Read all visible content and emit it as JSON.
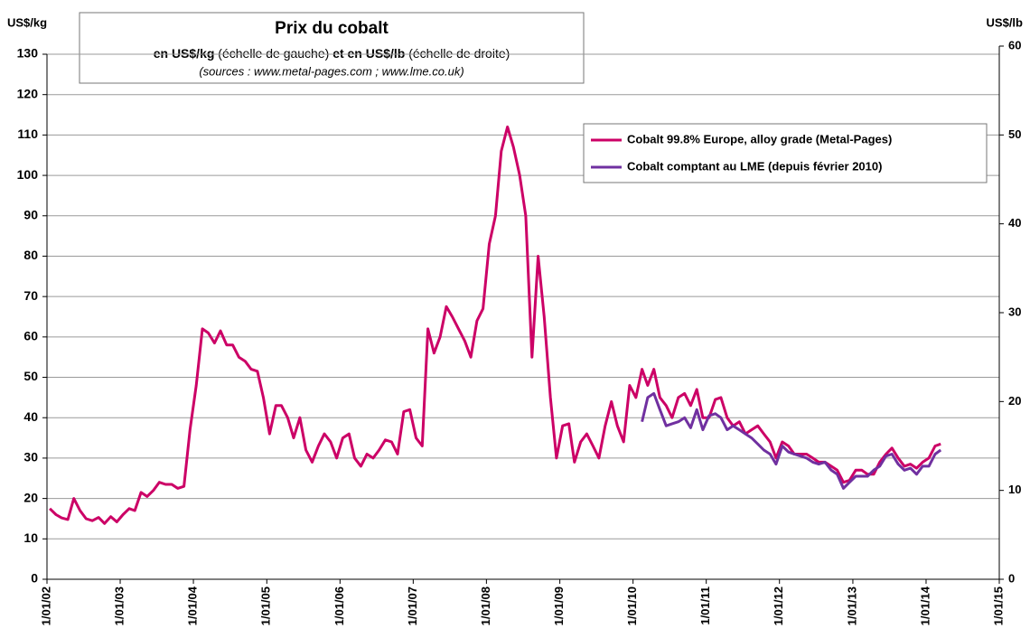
{
  "chart_data": {
    "type": "line",
    "title": "Prix du cobalt",
    "subtitle": [
      "en US$/kg",
      " (échelle de gauche) ",
      "et en US$/lb",
      " (échelle de droite)"
    ],
    "source": "(sources : www.metal-pages.com ; www.lme.co.uk)",
    "y_label": "US$/kg",
    "y2_label": "US$/lb",
    "xlim": [
      "2002-01-01",
      "2015-01-01"
    ],
    "xticks": [
      {
        "value": "2002-01-01",
        "label": "1/01/02"
      },
      {
        "value": "2003-01-01",
        "label": "1/01/03"
      },
      {
        "value": "2004-01-01",
        "label": "1/01/04"
      },
      {
        "value": "2005-01-01",
        "label": "1/01/05"
      },
      {
        "value": "2006-01-01",
        "label": "1/01/06"
      },
      {
        "value": "2007-01-01",
        "label": "1/01/07"
      },
      {
        "value": "2008-01-01",
        "label": "1/01/08"
      },
      {
        "value": "2009-01-01",
        "label": "1/01/09"
      },
      {
        "value": "2010-01-01",
        "label": "1/01/10"
      },
      {
        "value": "2011-01-01",
        "label": "1/01/11"
      },
      {
        "value": "2012-01-01",
        "label": "1/01/12"
      },
      {
        "value": "2013-01-01",
        "label": "1/01/13"
      },
      {
        "value": "2014-01-01",
        "label": "1/01/14"
      },
      {
        "value": "2015-01-01",
        "label": "1/01/15"
      }
    ],
    "ylim": [
      0,
      130
    ],
    "yticks": [
      0,
      10,
      20,
      30,
      40,
      50,
      60,
      70,
      80,
      90,
      100,
      110,
      120,
      130
    ],
    "y2lim": [
      0,
      60
    ],
    "y2ticks": [
      0,
      10,
      20,
      30,
      40,
      50,
      60
    ],
    "grid": true,
    "legend": "upper right",
    "series": [
      {
        "name": "Cobalt 99.8% Europe, alloy grade (Metal-Pages)",
        "color": "#cc0066",
        "x": [
          "2002-01-15",
          "2002-02-15",
          "2002-03-15",
          "2002-04-15",
          "2002-05-15",
          "2002-06-15",
          "2002-07-15",
          "2002-08-15",
          "2002-09-15",
          "2002-10-15",
          "2002-11-15",
          "2002-12-15",
          "2003-01-15",
          "2003-02-15",
          "2003-03-15",
          "2003-04-15",
          "2003-05-15",
          "2003-06-15",
          "2003-07-15",
          "2003-08-15",
          "2003-09-15",
          "2003-10-15",
          "2003-11-15",
          "2003-12-15",
          "2004-01-15",
          "2004-02-15",
          "2004-03-15",
          "2004-04-15",
          "2004-05-15",
          "2004-06-15",
          "2004-07-15",
          "2004-08-15",
          "2004-09-15",
          "2004-10-15",
          "2004-11-15",
          "2004-12-15",
          "2005-01-15",
          "2005-02-15",
          "2005-03-15",
          "2005-04-15",
          "2005-05-15",
          "2005-06-15",
          "2005-07-15",
          "2005-08-15",
          "2005-09-15",
          "2005-10-15",
          "2005-11-15",
          "2005-12-15",
          "2006-01-15",
          "2006-02-15",
          "2006-03-15",
          "2006-04-15",
          "2006-05-15",
          "2006-06-15",
          "2006-07-15",
          "2006-08-15",
          "2006-09-15",
          "2006-10-15",
          "2006-11-15",
          "2006-12-15",
          "2007-01-15",
          "2007-02-15",
          "2007-03-15",
          "2007-04-15",
          "2007-05-15",
          "2007-06-15",
          "2007-07-15",
          "2007-08-15",
          "2007-09-15",
          "2007-10-15",
          "2007-11-15",
          "2007-12-15",
          "2008-01-15",
          "2008-02-15",
          "2008-03-15",
          "2008-04-15",
          "2008-05-15",
          "2008-06-15",
          "2008-07-15",
          "2008-08-15",
          "2008-09-15",
          "2008-10-15",
          "2008-11-15",
          "2008-12-15",
          "2009-01-15",
          "2009-02-15",
          "2009-03-15",
          "2009-04-15",
          "2009-05-15",
          "2009-06-15",
          "2009-07-15",
          "2009-08-15",
          "2009-09-15",
          "2009-10-15",
          "2009-11-15",
          "2009-12-15",
          "2010-01-15",
          "2010-02-15",
          "2010-03-15",
          "2010-04-15",
          "2010-05-15",
          "2010-06-15",
          "2010-07-15",
          "2010-08-15",
          "2010-09-15",
          "2010-10-15",
          "2010-11-15",
          "2010-12-15",
          "2011-01-15",
          "2011-02-15",
          "2011-03-15",
          "2011-04-15",
          "2011-05-15",
          "2011-06-15",
          "2011-07-15",
          "2011-08-15",
          "2011-09-15",
          "2011-10-15",
          "2011-11-15",
          "2011-12-15",
          "2012-01-15",
          "2012-02-15",
          "2012-03-15",
          "2012-04-15",
          "2012-05-15",
          "2012-06-15",
          "2012-07-15",
          "2012-08-15",
          "2012-09-15",
          "2012-10-15",
          "2012-11-15",
          "2012-12-15",
          "2013-01-15",
          "2013-02-15",
          "2013-03-15",
          "2013-04-15",
          "2013-05-15",
          "2013-06-15",
          "2013-07-15",
          "2013-08-15",
          "2013-09-15",
          "2013-10-15",
          "2013-11-15",
          "2013-12-15",
          "2014-01-15",
          "2014-02-15",
          "2014-03-15"
        ],
        "values": [
          17.5,
          16,
          15.2,
          14.8,
          20,
          17,
          15,
          14.5,
          15.3,
          13.8,
          15.5,
          14.2,
          16,
          17.5,
          17,
          21.5,
          20.5,
          22,
          24,
          23.5,
          23.5,
          22.5,
          23,
          37,
          48,
          62,
          61,
          58.5,
          61.5,
          58,
          58,
          55,
          54,
          52,
          51.5,
          45,
          36,
          43,
          43,
          40,
          35,
          40,
          32,
          29,
          33,
          36,
          34,
          30,
          35,
          36,
          30,
          28,
          31,
          30,
          32,
          34.5,
          34,
          31,
          41.5,
          42,
          35,
          33,
          62,
          56,
          60,
          67.5,
          65,
          62,
          59,
          55,
          64,
          67,
          83,
          90,
          106,
          112,
          107,
          100,
          90,
          55,
          80,
          65,
          45,
          30,
          38,
          38.5,
          29,
          34,
          36,
          33,
          30,
          38,
          44,
          38,
          34,
          48,
          45,
          52,
          48,
          52,
          45,
          43,
          40,
          45,
          46,
          43,
          47,
          40,
          40,
          44.5,
          45,
          40,
          38,
          39,
          36,
          37,
          38,
          36,
          34,
          30,
          34,
          33,
          31,
          31,
          31,
          30,
          29,
          29,
          28,
          27,
          24,
          24.5,
          27,
          27,
          26,
          26,
          29,
          31,
          32.5,
          30,
          28,
          28.5,
          27.5,
          29,
          30,
          33,
          33.5
        ]
      },
      {
        "name": "Cobalt comptant au LME (depuis février 2010)",
        "color": "#7030a0",
        "x": [
          "2010-02-15",
          "2010-03-15",
          "2010-04-15",
          "2010-05-15",
          "2010-06-15",
          "2010-07-15",
          "2010-08-15",
          "2010-09-15",
          "2010-10-15",
          "2010-11-15",
          "2010-12-15",
          "2011-01-15",
          "2011-02-15",
          "2011-03-15",
          "2011-04-15",
          "2011-05-15",
          "2011-06-15",
          "2011-07-15",
          "2011-08-15",
          "2011-09-15",
          "2011-10-15",
          "2011-11-15",
          "2011-12-15",
          "2012-01-15",
          "2012-02-15",
          "2012-03-15",
          "2012-04-15",
          "2012-05-15",
          "2012-06-15",
          "2012-07-15",
          "2012-08-15",
          "2012-09-15",
          "2012-10-15",
          "2012-11-15",
          "2012-12-15",
          "2013-01-15",
          "2013-02-15",
          "2013-03-15",
          "2013-04-15",
          "2013-05-15",
          "2013-06-15",
          "2013-07-15",
          "2013-08-15",
          "2013-09-15",
          "2013-10-15",
          "2013-11-15",
          "2013-12-15",
          "2014-01-15",
          "2014-02-15",
          "2014-03-15"
        ],
        "values": [
          39,
          45,
          46,
          42,
          38,
          38.5,
          39,
          40,
          37.5,
          42,
          37,
          40.5,
          41,
          40,
          37,
          38,
          37,
          36,
          35,
          33.5,
          32,
          31,
          28.5,
          33,
          31.5,
          31,
          30.5,
          30,
          29,
          28.5,
          29,
          27,
          26,
          22.5,
          24,
          25.5,
          25.5,
          25.5,
          27,
          28,
          30.5,
          31,
          28.5,
          27,
          27.5,
          26,
          28,
          28,
          31,
          32
        ]
      }
    ]
  }
}
